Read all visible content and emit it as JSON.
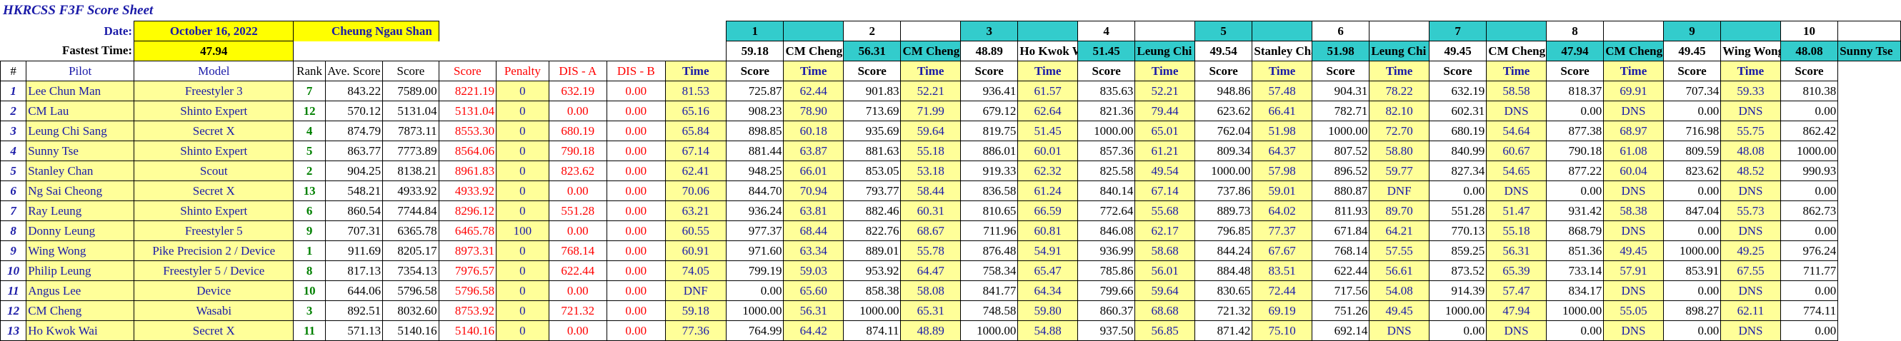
{
  "title": "HKRCSS F3F Score Sheet",
  "info": {
    "date_label": "Date:",
    "date_value": "October 16, 2022",
    "director": "Cheung Ngau Shan",
    "fastest_label": "Fastest Time:",
    "fastest_value": "47.94"
  },
  "rounds": [
    {
      "num": "1",
      "best": "59.18",
      "leader": "CM Cheng"
    },
    {
      "num": "2",
      "best": "56.31",
      "leader": "CM Cheng"
    },
    {
      "num": "3",
      "best": "48.89",
      "leader": "Ho Kwok Wai"
    },
    {
      "num": "4",
      "best": "51.45",
      "leader": "Leung Chi Sang"
    },
    {
      "num": "5",
      "best": "49.54",
      "leader": "Stanley Chan"
    },
    {
      "num": "6",
      "best": "51.98",
      "leader": "Leung Chi Sang"
    },
    {
      "num": "7",
      "best": "49.45",
      "leader": "CM Cheng"
    },
    {
      "num": "8",
      "best": "47.94",
      "leader": "CM Cheng"
    },
    {
      "num": "9",
      "best": "49.45",
      "leader": "Wing Wong"
    },
    {
      "num": "10",
      "best": "48.08",
      "leader": "Sunny Tse"
    }
  ],
  "headers": {
    "num": "#",
    "pilot": "Pilot",
    "model": "Model",
    "rank": "Rank",
    "ave": "Ave. Score",
    "score": "Score",
    "score2": "Score",
    "penalty": "Penalty",
    "disa": "DIS - A",
    "disb": "DIS - B",
    "time": "Time",
    "rscore": "Score"
  },
  "pilots": [
    {
      "num": "1",
      "name": "Lee Chun Man",
      "model": "Freestyler 3",
      "rank": "7",
      "ave": "843.22",
      "score": "7589.00",
      "score2": "8221.19",
      "penalty": "0",
      "disa": "632.19",
      "disb": "0.00",
      "rounds": [
        [
          "81.53",
          "725.87"
        ],
        [
          "62.44",
          "901.83"
        ],
        [
          "52.21",
          "936.41"
        ],
        [
          "61.57",
          "835.63"
        ],
        [
          "52.21",
          "948.86"
        ],
        [
          "57.48",
          "904.31"
        ],
        [
          "78.22",
          "632.19"
        ],
        [
          "58.58",
          "818.37"
        ],
        [
          "69.91",
          "707.34"
        ],
        [
          "59.33",
          "810.38"
        ]
      ]
    },
    {
      "num": "2",
      "name": "CM Lau",
      "model": "Shinto Expert",
      "rank": "12",
      "ave": "570.12",
      "score": "5131.04",
      "score2": "5131.04",
      "penalty": "0",
      "disa": "0.00",
      "disb": "0.00",
      "rounds": [
        [
          "65.16",
          "908.23"
        ],
        [
          "78.90",
          "713.69"
        ],
        [
          "71.99",
          "679.12"
        ],
        [
          "62.64",
          "821.36"
        ],
        [
          "79.44",
          "623.62"
        ],
        [
          "66.41",
          "782.71"
        ],
        [
          "82.10",
          "602.31"
        ],
        [
          "DNS",
          "0.00"
        ],
        [
          "DNS",
          "0.00"
        ],
        [
          "DNS",
          "0.00"
        ]
      ]
    },
    {
      "num": "3",
      "name": "Leung Chi Sang",
      "model": "Secret X",
      "rank": "4",
      "ave": "874.79",
      "score": "7873.11",
      "score2": "8553.30",
      "penalty": "0",
      "disa": "680.19",
      "disb": "0.00",
      "rounds": [
        [
          "65.84",
          "898.85"
        ],
        [
          "60.18",
          "935.69"
        ],
        [
          "59.64",
          "819.75"
        ],
        [
          "51.45",
          "1000.00"
        ],
        [
          "65.01",
          "762.04"
        ],
        [
          "51.98",
          "1000.00"
        ],
        [
          "72.70",
          "680.19"
        ],
        [
          "54.64",
          "877.38"
        ],
        [
          "68.97",
          "716.98"
        ],
        [
          "55.75",
          "862.42"
        ]
      ]
    },
    {
      "num": "4",
      "name": "Sunny Tse",
      "model": "Shinto Expert",
      "rank": "5",
      "ave": "863.77",
      "score": "7773.89",
      "score2": "8564.06",
      "penalty": "0",
      "disa": "790.18",
      "disb": "0.00",
      "rounds": [
        [
          "67.14",
          "881.44"
        ],
        [
          "63.87",
          "881.63"
        ],
        [
          "55.18",
          "886.01"
        ],
        [
          "60.01",
          "857.36"
        ],
        [
          "61.21",
          "809.34"
        ],
        [
          "64.37",
          "807.52"
        ],
        [
          "58.80",
          "840.99"
        ],
        [
          "60.67",
          "790.18"
        ],
        [
          "61.08",
          "809.59"
        ],
        [
          "48.08",
          "1000.00"
        ]
      ]
    },
    {
      "num": "5",
      "name": "Stanley Chan",
      "model": "Scout",
      "rank": "2",
      "ave": "904.25",
      "score": "8138.21",
      "score2": "8961.83",
      "penalty": "0",
      "disa": "823.62",
      "disb": "0.00",
      "rounds": [
        [
          "62.41",
          "948.25"
        ],
        [
          "66.01",
          "853.05"
        ],
        [
          "53.18",
          "919.33"
        ],
        [
          "62.32",
          "825.58"
        ],
        [
          "49.54",
          "1000.00"
        ],
        [
          "57.98",
          "896.52"
        ],
        [
          "59.77",
          "827.34"
        ],
        [
          "54.65",
          "877.22"
        ],
        [
          "60.04",
          "823.62"
        ],
        [
          "48.52",
          "990.93"
        ]
      ]
    },
    {
      "num": "6",
      "name": "Ng Sai Cheong",
      "model": "Secret X",
      "rank": "13",
      "ave": "548.21",
      "score": "4933.92",
      "score2": "4933.92",
      "penalty": "0",
      "disa": "0.00",
      "disb": "0.00",
      "rounds": [
        [
          "70.06",
          "844.70"
        ],
        [
          "70.94",
          "793.77"
        ],
        [
          "58.44",
          "836.58"
        ],
        [
          "61.24",
          "840.14"
        ],
        [
          "67.14",
          "737.86"
        ],
        [
          "59.01",
          "880.87"
        ],
        [
          "DNF",
          "0.00"
        ],
        [
          "DNS",
          "0.00"
        ],
        [
          "DNS",
          "0.00"
        ],
        [
          "DNS",
          "0.00"
        ]
      ]
    },
    {
      "num": "7",
      "name": "Ray Leung",
      "model": "Shinto Expert",
      "rank": "6",
      "ave": "860.54",
      "score": "7744.84",
      "score2": "8296.12",
      "penalty": "0",
      "disa": "551.28",
      "disb": "0.00",
      "rounds": [
        [
          "63.21",
          "936.24"
        ],
        [
          "63.81",
          "882.46"
        ],
        [
          "60.31",
          "810.65"
        ],
        [
          "66.59",
          "772.64"
        ],
        [
          "55.68",
          "889.73"
        ],
        [
          "64.02",
          "811.93"
        ],
        [
          "89.70",
          "551.28"
        ],
        [
          "51.47",
          "931.42"
        ],
        [
          "58.38",
          "847.04"
        ],
        [
          "55.73",
          "862.73"
        ]
      ]
    },
    {
      "num": "8",
      "name": "Donny Leung",
      "model": "Freestyler 5",
      "rank": "9",
      "ave": "707.31",
      "score": "6365.78",
      "score2": "6465.78",
      "penalty": "100",
      "disa": "0.00",
      "disb": "0.00",
      "rounds": [
        [
          "60.55",
          "977.37"
        ],
        [
          "68.44",
          "822.76"
        ],
        [
          "68.67",
          "711.96"
        ],
        [
          "60.81",
          "846.08"
        ],
        [
          "62.17",
          "796.85"
        ],
        [
          "77.37",
          "671.84"
        ],
        [
          "64.21",
          "770.13"
        ],
        [
          "55.18",
          "868.79"
        ],
        [
          "DNS",
          "0.00"
        ],
        [
          "DNS",
          "0.00"
        ]
      ]
    },
    {
      "num": "9",
      "name": "Wing Wong",
      "model": "Pike Precision 2 / Device",
      "rank": "1",
      "ave": "911.69",
      "score": "8205.17",
      "score2": "8973.31",
      "penalty": "0",
      "disa": "768.14",
      "disb": "0.00",
      "rounds": [
        [
          "60.91",
          "971.60"
        ],
        [
          "63.34",
          "889.01"
        ],
        [
          "55.78",
          "876.48"
        ],
        [
          "54.91",
          "936.99"
        ],
        [
          "58.68",
          "844.24"
        ],
        [
          "67.67",
          "768.14"
        ],
        [
          "57.55",
          "859.25"
        ],
        [
          "56.31",
          "851.36"
        ],
        [
          "49.45",
          "1000.00"
        ],
        [
          "49.25",
          "976.24"
        ]
      ]
    },
    {
      "num": "10",
      "name": "Philip Leung",
      "model": "Freestyler 5 / Device",
      "rank": "8",
      "ave": "817.13",
      "score": "7354.13",
      "score2": "7976.57",
      "penalty": "0",
      "disa": "622.44",
      "disb": "0.00",
      "rounds": [
        [
          "74.05",
          "799.19"
        ],
        [
          "59.03",
          "953.92"
        ],
        [
          "64.47",
          "758.34"
        ],
        [
          "65.47",
          "785.86"
        ],
        [
          "56.01",
          "884.48"
        ],
        [
          "83.51",
          "622.44"
        ],
        [
          "56.61",
          "873.52"
        ],
        [
          "65.39",
          "733.14"
        ],
        [
          "57.91",
          "853.91"
        ],
        [
          "67.55",
          "711.77"
        ]
      ]
    },
    {
      "num": "11",
      "name": "Angus Lee",
      "model": "Device",
      "rank": "10",
      "ave": "644.06",
      "score": "5796.58",
      "score2": "5796.58",
      "penalty": "0",
      "disa": "0.00",
      "disb": "0.00",
      "rounds": [
        [
          "DNF",
          "0.00"
        ],
        [
          "65.60",
          "858.38"
        ],
        [
          "58.08",
          "841.77"
        ],
        [
          "64.34",
          "799.66"
        ],
        [
          "59.64",
          "830.65"
        ],
        [
          "72.44",
          "717.56"
        ],
        [
          "54.08",
          "914.39"
        ],
        [
          "57.47",
          "834.17"
        ],
        [
          "DNS",
          "0.00"
        ],
        [
          "DNS",
          "0.00"
        ]
      ]
    },
    {
      "num": "12",
      "name": "CM Cheng",
      "model": "Wasabi",
      "rank": "3",
      "ave": "892.51",
      "score": "8032.60",
      "score2": "8753.92",
      "penalty": "0",
      "disa": "721.32",
      "disb": "0.00",
      "rounds": [
        [
          "59.18",
          "1000.00"
        ],
        [
          "56.31",
          "1000.00"
        ],
        [
          "65.31",
          "748.58"
        ],
        [
          "59.80",
          "860.37"
        ],
        [
          "68.68",
          "721.32"
        ],
        [
          "69.19",
          "751.26"
        ],
        [
          "49.45",
          "1000.00"
        ],
        [
          "47.94",
          "1000.00"
        ],
        [
          "55.05",
          "898.27"
        ],
        [
          "62.11",
          "774.11"
        ]
      ]
    },
    {
      "num": "13",
      "name": "Ho Kwok Wai",
      "model": "Secret X",
      "rank": "11",
      "ave": "571.13",
      "score": "5140.16",
      "score2": "5140.16",
      "penalty": "0",
      "disa": "0.00",
      "disb": "0.00",
      "rounds": [
        [
          "77.36",
          "764.99"
        ],
        [
          "64.42",
          "874.11"
        ],
        [
          "48.89",
          "1000.00"
        ],
        [
          "54.88",
          "937.50"
        ],
        [
          "56.85",
          "871.42"
        ],
        [
          "75.10",
          "692.14"
        ],
        [
          "DNS",
          "0.00"
        ],
        [
          "DNS",
          "0.00"
        ],
        [
          "DNS",
          "0.00"
        ],
        [
          "DNS",
          "0.00"
        ]
      ]
    }
  ],
  "colors": {
    "title_blue": "#1a1aa8",
    "red": "#ff0000",
    "green": "#008000",
    "cell_yellow": "#ffff99",
    "bright_yellow": "#ffff00",
    "teal": "#33cccc"
  }
}
